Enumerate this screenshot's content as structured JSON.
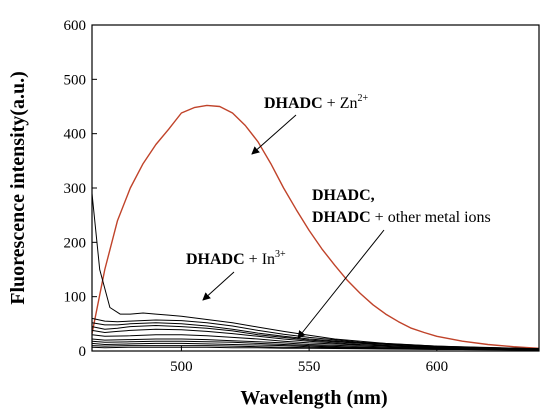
{
  "chart_data": {
    "type": "line",
    "xlabel": "Wavelength (nm)",
    "ylabel": "Fluorescence intensity(a.u.)",
    "xlim": [
      465,
      640
    ],
    "ylim": [
      0,
      600
    ],
    "x_ticks": [
      500,
      550,
      600
    ],
    "y_ticks": [
      0,
      100,
      200,
      300,
      400,
      500,
      600
    ],
    "grid": false,
    "colors": {
      "zn": "#c0432a",
      "others": "#000000",
      "axis": "#000000"
    },
    "annotations": {
      "zn": {
        "bold": "DHADC",
        "plus": " + Zn",
        "sup": "2+"
      },
      "in": {
        "bold": "DHADC",
        "plus": " + In",
        "sup": "3+"
      },
      "others_line1": "DHADC,",
      "others_line2_bold": "DHADC",
      "others_line2_rest": " + other metal ions"
    },
    "series": [
      {
        "color": "#c0432a",
        "x": [
          465,
          470,
          475,
          480,
          485,
          490,
          495,
          500,
          505,
          510,
          515,
          520,
          525,
          530,
          535,
          540,
          545,
          550,
          555,
          560,
          565,
          570,
          575,
          580,
          585,
          590,
          595,
          600,
          610,
          620,
          630,
          640
        ],
        "values": [
          32,
          150,
          240,
          300,
          345,
          380,
          408,
          438,
          448,
          452,
          450,
          438,
          415,
          385,
          345,
          300,
          260,
          222,
          188,
          158,
          130,
          106,
          85,
          68,
          54,
          42,
          34,
          27,
          18,
          12,
          8,
          5
        ]
      },
      {
        "color": "#000000",
        "x": [
          465,
          468,
          472,
          476,
          480,
          485,
          490,
          495,
          500,
          510,
          520,
          530,
          540,
          550,
          560,
          580,
          600,
          620,
          640
        ],
        "values": [
          290,
          150,
          80,
          68,
          68,
          70,
          68,
          66,
          64,
          58,
          52,
          44,
          36,
          29,
          22,
          14,
          9,
          6,
          4
        ]
      },
      {
        "color": "#000000",
        "x": [
          465,
          470,
          475,
          480,
          490,
          500,
          510,
          520,
          530,
          540,
          550,
          570,
          600,
          640
        ],
        "values": [
          60,
          55,
          54,
          55,
          57,
          56,
          52,
          46,
          38,
          31,
          25,
          16,
          9,
          4
        ]
      },
      {
        "color": "#000000",
        "x": [
          465,
          470,
          475,
          480,
          490,
          500,
          510,
          520,
          530,
          540,
          550,
          570,
          600,
          640
        ],
        "values": [
          52,
          48,
          48,
          50,
          52,
          50,
          46,
          40,
          33,
          27,
          22,
          15,
          8,
          4
        ]
      },
      {
        "color": "#000000",
        "x": [
          465,
          470,
          475,
          480,
          490,
          500,
          510,
          520,
          530,
          540,
          550,
          570,
          600,
          640
        ],
        "values": [
          45,
          40,
          42,
          45,
          47,
          45,
          42,
          37,
          30,
          25,
          20,
          14,
          8,
          4
        ]
      },
      {
        "color": "#000000",
        "x": [
          465,
          470,
          475,
          480,
          490,
          500,
          510,
          520,
          530,
          540,
          550,
          570,
          600,
          640
        ],
        "values": [
          38,
          34,
          36,
          38,
          40,
          39,
          36,
          32,
          27,
          22,
          18,
          12,
          7,
          3
        ]
      },
      {
        "color": "#000000",
        "x": [
          465,
          470,
          480,
          490,
          500,
          510,
          520,
          530,
          540,
          550,
          570,
          600,
          640
        ],
        "values": [
          30,
          27,
          28,
          30,
          30,
          28,
          25,
          22,
          18,
          15,
          11,
          6,
          3
        ]
      },
      {
        "color": "#000000",
        "x": [
          465,
          470,
          480,
          490,
          500,
          510,
          520,
          530,
          540,
          550,
          570,
          600,
          640
        ],
        "values": [
          22,
          20,
          21,
          22,
          22,
          21,
          19,
          17,
          15,
          12,
          9,
          5,
          3
        ]
      },
      {
        "color": "#000000",
        "x": [
          465,
          470,
          480,
          490,
          500,
          510,
          520,
          530,
          540,
          550,
          570,
          600,
          640
        ],
        "values": [
          18,
          16,
          17,
          18,
          18,
          17,
          16,
          14,
          12,
          10,
          7,
          4,
          2
        ]
      },
      {
        "color": "#000000",
        "x": [
          465,
          470,
          480,
          490,
          500,
          510,
          520,
          530,
          540,
          550,
          570,
          600,
          640
        ],
        "values": [
          14,
          12,
          13,
          14,
          14,
          13,
          12,
          11,
          10,
          8,
          6,
          4,
          2
        ]
      },
      {
        "color": "#000000",
        "x": [
          465,
          470,
          480,
          490,
          500,
          510,
          520,
          530,
          540,
          550,
          570,
          600,
          640
        ],
        "values": [
          10,
          9,
          10,
          10,
          10,
          10,
          9,
          8,
          7,
          6,
          5,
          3,
          2
        ]
      },
      {
        "color": "#000000",
        "x": [
          465,
          470,
          480,
          490,
          500,
          510,
          520,
          530,
          540,
          550,
          570,
          600,
          640
        ],
        "values": [
          7,
          6,
          7,
          7,
          7,
          7,
          6,
          6,
          5,
          5,
          4,
          3,
          2
        ]
      }
    ]
  }
}
